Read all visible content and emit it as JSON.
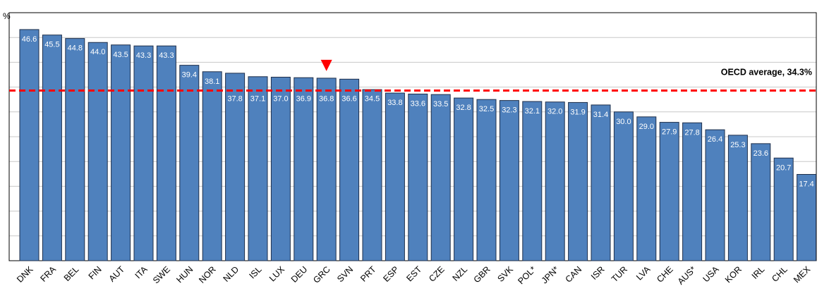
{
  "chart_data": {
    "type": "bar",
    "unit_label": "%",
    "categories": [
      "DNK",
      "FRA",
      "BEL",
      "FIN",
      "AUT",
      "ITA",
      "SWE",
      "HUN",
      "NOR",
      "NLD",
      "ISL",
      "LUX",
      "DEU",
      "GRC",
      "SVN",
      "PRT",
      "ESP",
      "EST",
      "CZE",
      "NZL",
      "GBR",
      "SVK",
      "POL*",
      "JPN*",
      "CAN",
      "ISR",
      "TUR",
      "LVA",
      "CHE",
      "AUS*",
      "USA",
      "KOR",
      "IRL",
      "CHL",
      "MEX"
    ],
    "values": [
      46.6,
      45.5,
      44.8,
      44.0,
      43.5,
      43.3,
      43.3,
      39.4,
      38.1,
      37.8,
      37.1,
      37.0,
      36.9,
      36.8,
      36.6,
      34.5,
      33.8,
      33.6,
      33.5,
      32.8,
      32.5,
      32.3,
      32.1,
      32.0,
      31.9,
      31.4,
      30.0,
      29.0,
      27.9,
      27.8,
      26.4,
      25.3,
      23.6,
      20.7,
      17.4
    ],
    "value_labels": [
      "46.6",
      "45.5",
      "44.8",
      "44.0",
      "43.5",
      "43.3",
      "43.3",
      "39.4",
      "38.1",
      "37.8",
      "37.1",
      "37.0",
      "36.9",
      "36.8",
      "36.6",
      "34.5",
      "33.8",
      "33.6",
      "33.5",
      "32.8",
      "32.5",
      "32.3",
      "32.1",
      "32.0",
      "31.9",
      "31.4",
      "30.0",
      "29.0",
      "27.9",
      "27.8",
      "26.4",
      "25.3",
      "23.6",
      "20.7",
      "17.4"
    ],
    "ylim": [
      0,
      50
    ],
    "highlight": "GRC",
    "reference_line": {
      "label": "OECD average, 34.3%",
      "value": 34.3
    },
    "grid": true,
    "title": "",
    "xlabel": "",
    "ylabel": "%"
  },
  "colors": {
    "bar": "#4f81bd",
    "bar_outline": "#1f2f4a",
    "average_line": "#ff0000",
    "marker": "#ff0000"
  }
}
